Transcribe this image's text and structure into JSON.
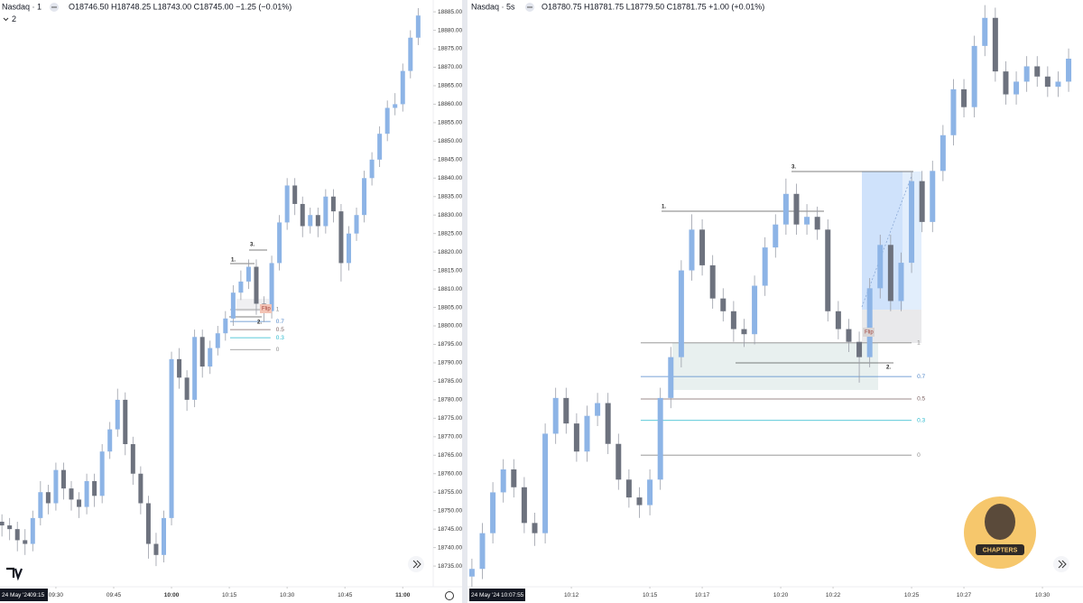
{
  "chart_data": [
    {
      "type": "candlestick",
      "title": "Nasdaq · 1",
      "ohlc": "O18746.50 H18748.25 L18743.00 C18745.00 −1.25 (−0.01%)",
      "indicator_count": 2,
      "date_label": "24 May '24",
      "time_label": "09:15",
      "up_color": "#8db4e6",
      "down_color": "#6d727e",
      "xlim": [
        0.5,
        112.9
      ],
      "ylim": [
        18729.4,
        18888.2
      ],
      "xticks": [
        {
          "value": 15,
          "label": "09:30"
        },
        {
          "value": 30,
          "label": "09:45"
        },
        {
          "value": 45,
          "label": "10:00"
        },
        {
          "value": 60,
          "label": "10:15"
        },
        {
          "value": 75,
          "label": "10:30"
        },
        {
          "value": 90,
          "label": "10:45"
        },
        {
          "value": 105,
          "label": "11:00"
        }
      ],
      "yticks": [
        {
          "value": 18735,
          "label": "18735.00"
        },
        {
          "value": 18740,
          "label": "18740.00"
        },
        {
          "value": 18745,
          "label": "18745.00"
        },
        {
          "value": 18750,
          "label": "18750.00"
        },
        {
          "value": 18755,
          "label": "18755.00"
        },
        {
          "value": 18760,
          "label": "18760.00"
        },
        {
          "value": 18765,
          "label": "18765.00"
        },
        {
          "value": 18770,
          "label": "18770.00"
        },
        {
          "value": 18775,
          "label": "18775.00"
        },
        {
          "value": 18780,
          "label": "18780.00"
        },
        {
          "value": 18785,
          "label": "18785.00"
        },
        {
          "value": 18790,
          "label": "18790.00"
        },
        {
          "value": 18795,
          "label": "18795.00"
        },
        {
          "value": 18800,
          "label": "18800.00"
        },
        {
          "value": 18805,
          "label": "18805.00"
        },
        {
          "value": 18810,
          "label": "18810.00"
        },
        {
          "value": 18815,
          "label": "18815.00"
        },
        {
          "value": 18820,
          "label": "18820.00"
        },
        {
          "value": 18825,
          "label": "18825.00"
        },
        {
          "value": 18830,
          "label": "18830.00"
        },
        {
          "value": 18835,
          "label": "18835.00"
        },
        {
          "value": 18840,
          "label": "18840.00"
        },
        {
          "value": 18845,
          "label": "18845.00"
        },
        {
          "value": 18850,
          "label": "18850.00"
        },
        {
          "value": 18855,
          "label": "18855.00"
        },
        {
          "value": 18860,
          "label": "18860.00"
        },
        {
          "value": 18865,
          "label": "18865.00"
        },
        {
          "value": 18870,
          "label": "18870.00"
        },
        {
          "value": 18875,
          "label": "18875.00"
        },
        {
          "value": 18880,
          "label": "18880.00"
        },
        {
          "value": 18885,
          "label": "18885.00"
        }
      ],
      "x": [
        1,
        3,
        5,
        7,
        9,
        11,
        13,
        15,
        17,
        19,
        21,
        23,
        25,
        27,
        29,
        31,
        33,
        35,
        37,
        39,
        41,
        43,
        45,
        47,
        49,
        51,
        53,
        55,
        57,
        59,
        61,
        63,
        65,
        67,
        69,
        71,
        73,
        75,
        77,
        79,
        81,
        83,
        85,
        87,
        89,
        91,
        93,
        95,
        97,
        99,
        101,
        103,
        105,
        107,
        109
      ],
      "open": [
        18747,
        18746,
        18745,
        18742,
        18741,
        18748,
        18755,
        18752,
        18761,
        18756,
        18753,
        18751,
        18758,
        18754,
        18766,
        18772,
        18780,
        18768,
        18760,
        18752,
        18741,
        18738,
        18748,
        18791,
        18786,
        18780,
        18797,
        18789,
        18794,
        18798,
        18802,
        18809,
        18812,
        18816,
        18806,
        18804,
        18817,
        18828,
        18838,
        18833,
        18827,
        18830,
        18827,
        18835,
        18831,
        18817,
        18825,
        18830,
        18840,
        18845,
        18852,
        18859,
        18860,
        18869,
        18878
      ],
      "high": [
        18749,
        18748,
        18747,
        18745,
        18750,
        18758,
        18757,
        18763,
        18763,
        18758,
        18755,
        18760,
        18760,
        18768,
        18774,
        18783,
        18782,
        18770,
        18762,
        18754,
        18744,
        18750,
        18793,
        18794,
        18788,
        18799,
        18799,
        18796,
        18800,
        18804,
        18811,
        18815,
        18818,
        18818,
        18808,
        18819,
        18830,
        18840,
        18840,
        18835,
        18832,
        18832,
        18837,
        18837,
        18833,
        18827,
        18832,
        18842,
        18847,
        18854,
        18861,
        18863,
        18871,
        18880,
        18886
      ],
      "low": [
        18743,
        18742,
        18739,
        18738,
        18739,
        18746,
        18749,
        18750,
        18753,
        18750,
        18748,
        18749,
        18751,
        18752,
        18764,
        18770,
        18765,
        18757,
        18749,
        18737,
        18735,
        18736,
        18746,
        18783,
        18777,
        18778,
        18786,
        18787,
        18792,
        18796,
        18800,
        18807,
        18810,
        18803,
        18801,
        18802,
        18815,
        18826,
        18830,
        18824,
        18825,
        18824,
        18825,
        18828,
        18812,
        18815,
        18823,
        18828,
        18838,
        18843,
        18850,
        18857,
        18858,
        18867,
        18876
      ],
      "close": [
        18746,
        18745,
        18742,
        18741,
        18748,
        18755,
        18752,
        18761,
        18756,
        18753,
        18751,
        18758,
        18754,
        18766,
        18772,
        18780,
        18768,
        18760,
        18752,
        18741,
        18738,
        18748,
        18791,
        18786,
        18780,
        18797,
        18789,
        18794,
        18798,
        18802,
        18809,
        18812,
        18816,
        18806,
        18804,
        18817,
        18828,
        18838,
        18833,
        18827,
        18830,
        18827,
        18835,
        18831,
        18817,
        18825,
        18830,
        18840,
        18845,
        18852,
        18859,
        18860,
        18869,
        18878,
        18884
      ],
      "fib_x": [
        60.2,
        70.7
      ],
      "fib": [
        {
          "value": 18804.4,
          "label": "1",
          "color": "#8a8a8a"
        },
        {
          "value": 18801.2,
          "label": "0.7",
          "color": "#4f86c9"
        },
        {
          "value": 18799.0,
          "label": "0.5",
          "color": "#7d6464"
        },
        {
          "value": 18796.8,
          "label": "0.3",
          "color": "#26b8cc"
        },
        {
          "value": 18793.6,
          "label": "0",
          "color": "#8a8a8a"
        }
      ],
      "marks": {
        "one": "1.",
        "two": "2.",
        "three": "3.",
        "flip": "Flip"
      }
    },
    {
      "type": "candlestick",
      "title": "Nasdaq · 5s",
      "ohlc": "O18780.75 H18781.75 L18779.50 C18781.75 +1.00 (+0.01%)",
      "date_label": "24 May '24",
      "time_label": "10:07:55",
      "up_color": "#8db4e6",
      "down_color": "#6d727e",
      "xlim": [
        8.1,
        31.55
      ],
      "ylim": [
        18780.5,
        18838
      ],
      "xticks": [
        {
          "value": 12,
          "label": "10:12"
        },
        {
          "value": 15,
          "label": "10:15"
        },
        {
          "value": 17,
          "label": "10:17"
        },
        {
          "value": 20,
          "label": "10:20"
        },
        {
          "value": 22,
          "label": "10:22"
        },
        {
          "value": 25,
          "label": "10:25"
        },
        {
          "value": 27,
          "label": "10:27"
        },
        {
          "value": 30,
          "label": "10:30"
        }
      ],
      "x": [
        8.2,
        8.6,
        9,
        9.4,
        9.8,
        10.2,
        10.6,
        11,
        11.4,
        11.8,
        12.2,
        12.6,
        13,
        13.4,
        13.8,
        14.2,
        14.6,
        15,
        15.4,
        15.8,
        16.2,
        16.6,
        17,
        17.4,
        17.8,
        18.2,
        18.6,
        19,
        19.4,
        19.8,
        20.2,
        20.6,
        21,
        21.4,
        21.8,
        22.2,
        22.6,
        23,
        23.4,
        23.8,
        24.2,
        24.6,
        25,
        25.4,
        25.8,
        26.2,
        26.6,
        27,
        27.4,
        27.8,
        28.2,
        28.6,
        29,
        29.4,
        29.8,
        30.2,
        30.6,
        31
      ],
      "open": [
        18781.5,
        18782.25,
        18785.75,
        18789.75,
        18792,
        18790.25,
        18786.75,
        18785.75,
        18795.5,
        18799,
        18796.5,
        18793.75,
        18797.25,
        18798.5,
        18794.5,
        18791,
        18789.25,
        18788.5,
        18791,
        18799,
        18803,
        18811.5,
        18815.5,
        18812,
        18808.75,
        18807.5,
        18805.75,
        18805.25,
        18810,
        18813.75,
        18816,
        18819,
        18816,
        18816.75,
        18815.5,
        18807.5,
        18805.75,
        18804.5,
        18803,
        18809.75,
        18814,
        18808.5,
        18812.25,
        18820.25,
        18816.25,
        18821.25,
        18824.75,
        18829.25,
        18827.5,
        18833.5,
        18836.25,
        18831,
        18828.75,
        18830,
        18831.5,
        18830.5,
        18829.5,
        18830
      ],
      "high": [
        18783.25,
        18786.75,
        18790.75,
        18793,
        18793,
        18791.25,
        18787.75,
        18796.5,
        18800,
        18800,
        18797.5,
        18798.25,
        18799.5,
        18799.5,
        18795.5,
        18792,
        18790.25,
        18792,
        18800,
        18804,
        18812.5,
        18817,
        18816.5,
        18813,
        18809.75,
        18808.5,
        18806.75,
        18811,
        18814.75,
        18817,
        18820.5,
        18820,
        18818,
        18817.75,
        18816.5,
        18808.5,
        18806.75,
        18805.5,
        18810.75,
        18815,
        18815,
        18813.25,
        18821.25,
        18821.25,
        18822.25,
        18825.75,
        18830.25,
        18830.25,
        18834.5,
        18837.5,
        18837.25,
        18832,
        18831,
        18832.5,
        18832.5,
        18831.5,
        18831,
        18833.25
      ],
      "low": [
        18780.5,
        18781.25,
        18784.75,
        18788.75,
        18789.25,
        18785.75,
        18784.5,
        18784.75,
        18794.5,
        18795.5,
        18792.75,
        18792.75,
        18796.25,
        18793.5,
        18790,
        18788.25,
        18787.25,
        18787.5,
        18790,
        18798,
        18802,
        18810.5,
        18811,
        18807.75,
        18806.5,
        18804.5,
        18804,
        18804.25,
        18809,
        18812.75,
        18815,
        18815,
        18815,
        18814.5,
        18806.5,
        18804.75,
        18803.5,
        18800.5,
        18802,
        18808.75,
        18807.5,
        18807.5,
        18811.25,
        18815.25,
        18815.25,
        18820.25,
        18823.75,
        18826.5,
        18826.5,
        18832.5,
        18830,
        18827.75,
        18827.75,
        18829,
        18829.5,
        18828.5,
        18828.5,
        18829
      ],
      "close": [
        18782.25,
        18785.75,
        18789.75,
        18792,
        18790.25,
        18786.75,
        18785.75,
        18795.5,
        18799,
        18796.5,
        18793.75,
        18797.25,
        18798.5,
        18794.5,
        18791,
        18789.25,
        18788.5,
        18791,
        18799,
        18803,
        18811.5,
        18815.5,
        18812,
        18808.75,
        18807.5,
        18805.75,
        18805.25,
        18810,
        18813.75,
        18816,
        18819,
        18816,
        18816.75,
        18815.5,
        18807.5,
        18805.75,
        18804.5,
        18803,
        18809.75,
        18814,
        18808.5,
        18812.25,
        18820.25,
        18816.25,
        18821.25,
        18824.75,
        18829.25,
        18827.5,
        18833.5,
        18836.25,
        18831,
        18828.75,
        18830,
        18831.5,
        18830.5,
        18829.5,
        18830,
        18832.25
      ],
      "fib_x": [
        14.65,
        25.0
      ],
      "fib": [
        {
          "value": 18804.4,
          "label": "1",
          "color": "#8a8a8a"
        },
        {
          "value": 18801.1,
          "label": "0.7",
          "color": "#4f86c9"
        },
        {
          "value": 18798.9,
          "label": "0.5",
          "color": "#7d6464"
        },
        {
          "value": 18796.8,
          "label": "0.3",
          "color": "#26b8cc"
        },
        {
          "value": 18793.4,
          "label": "0",
          "color": "#8a8a8a"
        }
      ],
      "marks": {
        "one": "1.",
        "two": "2.",
        "three": "3.",
        "flip": "Flip"
      },
      "logo_text": "CHAPTERS"
    }
  ]
}
